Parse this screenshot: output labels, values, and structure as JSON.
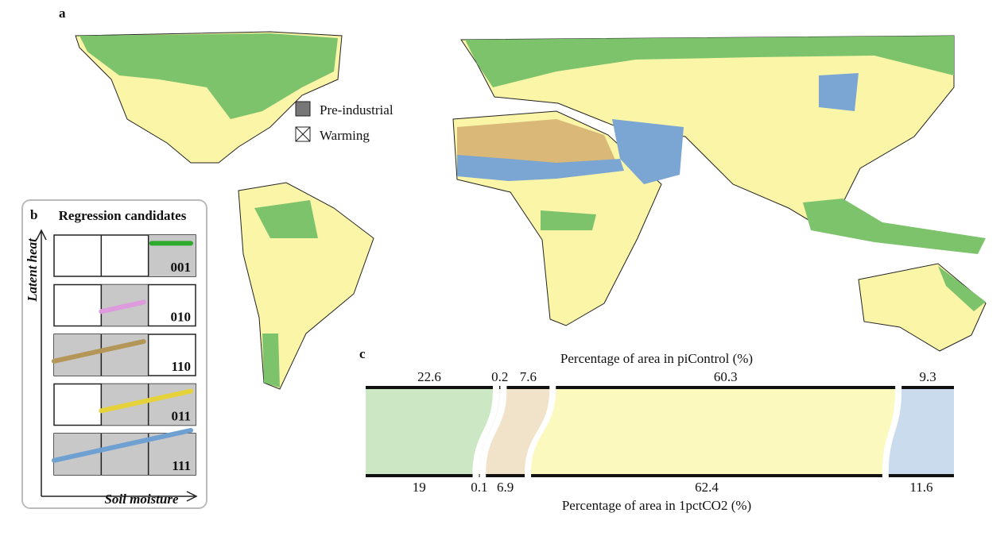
{
  "panel_labels": [
    "a",
    "b",
    "c"
  ],
  "map": {
    "legend": [
      "Pre-industrial",
      "Warming"
    ]
  },
  "candidates": {
    "title": "Regression candidates",
    "y_label": "Latent heat",
    "x_label": "Soil moisture",
    "items": [
      {
        "code": "001",
        "color": "#2eaa2e"
      },
      {
        "code": "010",
        "color": "#dd9add"
      },
      {
        "code": "110",
        "color": "#b39658"
      },
      {
        "code": "011",
        "color": "#e6d23a"
      },
      {
        "code": "111",
        "color": "#6fa0d2"
      }
    ]
  },
  "chart_data": {
    "type": "sankey",
    "top_title": "Percentage of area in piControl (%)",
    "bottom_title": "Percentage of area in 1pctCO2 (%)",
    "colors": [
      "#7dc36c",
      "#e8e8e8",
      "#d9b878",
      "#f5ef5a",
      "#7ba6d3"
    ],
    "top_values": [
      22.6,
      0.2,
      7.6,
      60.3,
      9.3
    ],
    "bottom_values": [
      19,
      0.1,
      6.9,
      62.4,
      11.6
    ]
  }
}
